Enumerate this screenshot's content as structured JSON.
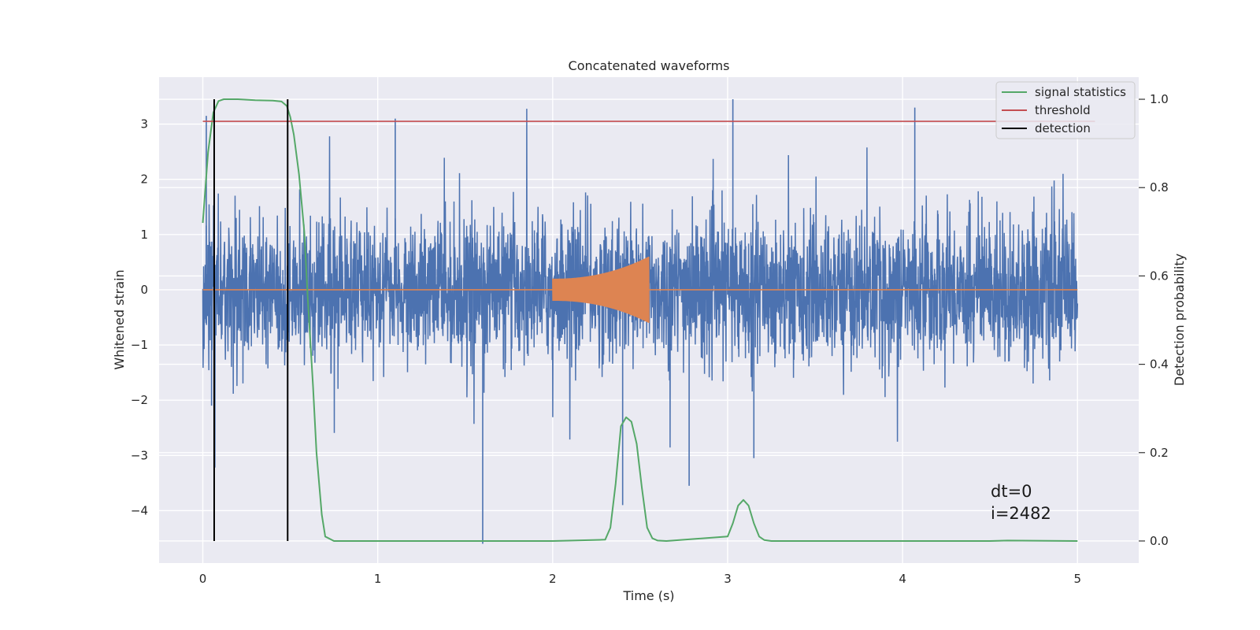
{
  "chart_data": {
    "type": "line",
    "title": "Concatenated waveforms",
    "xlabel": "Time (s)",
    "ylabel": "Whitened strain",
    "ylabel_right": "Detection probability",
    "xlim": [
      -0.25,
      5.35
    ],
    "ylim": [
      -4.95,
      3.85
    ],
    "ylim_right": [
      -0.05,
      1.05
    ],
    "x_ticks": [
      0,
      1,
      2,
      3,
      4,
      5
    ],
    "y_ticks": [
      -4,
      -3,
      -2,
      -1,
      0,
      1,
      2,
      3
    ],
    "y_ticks_right": [
      0.0,
      0.2,
      0.4,
      0.6,
      0.8,
      1.0
    ],
    "x_tick_labels": [
      "0",
      "1",
      "2",
      "3",
      "4",
      "5"
    ],
    "y_tick_labels": [
      "−4",
      "−3",
      "−2",
      "−1",
      "0",
      "1",
      "2",
      "3"
    ],
    "y_tick_labels_right": [
      "0.0",
      "0.2",
      "0.4",
      "0.6",
      "0.8",
      "1.0"
    ],
    "grid": true,
    "background": "#eaeaf2",
    "legend_position": "top-right",
    "series": [
      {
        "name": "",
        "axis": "left",
        "color": "#4c72b0",
        "kind": "noise",
        "x_range": [
          0,
          5
        ],
        "envelope": 1.7,
        "max_peak": 3.45,
        "min_peak": -4.6
      },
      {
        "name": "",
        "axis": "left",
        "color": "#dd8452",
        "kind": "chirp",
        "x_range": [
          2.0,
          2.55
        ],
        "start_amplitude": 0.2,
        "peak_amplitude": 0.6,
        "baseline_range": [
          0,
          5
        ]
      },
      {
        "name": "signal statistics",
        "axis": "right",
        "color": "#55a868",
        "x": [
          0.0,
          0.03,
          0.06,
          0.09,
          0.12,
          0.15,
          0.2,
          0.3,
          0.4,
          0.45,
          0.48,
          0.5,
          0.52,
          0.55,
          0.58,
          0.6,
          0.63,
          0.65,
          0.68,
          0.7,
          0.75,
          1.0,
          2.0,
          2.3,
          2.33,
          2.36,
          2.39,
          2.42,
          2.45,
          2.48,
          2.51,
          2.54,
          2.57,
          2.6,
          2.65,
          3.0,
          3.03,
          3.06,
          3.09,
          3.12,
          3.15,
          3.18,
          3.21,
          3.25,
          4.0,
          4.5,
          4.6,
          5.0
        ],
        "y": [
          0.72,
          0.88,
          0.97,
          0.996,
          1.0,
          1.0,
          1.0,
          0.998,
          0.997,
          0.995,
          0.985,
          0.96,
          0.92,
          0.83,
          0.7,
          0.55,
          0.35,
          0.2,
          0.06,
          0.01,
          0.0,
          0.0,
          0.0,
          0.003,
          0.03,
          0.13,
          0.26,
          0.28,
          0.27,
          0.22,
          0.12,
          0.03,
          0.006,
          0.001,
          0.0,
          0.01,
          0.04,
          0.08,
          0.093,
          0.08,
          0.04,
          0.01,
          0.002,
          0.0,
          0.0,
          0.0,
          0.001,
          0.0
        ]
      },
      {
        "name": "threshold",
        "axis": "right",
        "color": "#c44e52",
        "x": [
          0,
          5.1
        ],
        "y": [
          0.95,
          0.95
        ]
      },
      {
        "name": "detection",
        "axis": "right",
        "color": "#000000",
        "kind": "vlines",
        "x": [
          0.065,
          0.485
        ],
        "y_range": [
          0.0,
          1.0
        ]
      }
    ],
    "annotations": [
      "dt=0",
      "i=2482"
    ]
  }
}
